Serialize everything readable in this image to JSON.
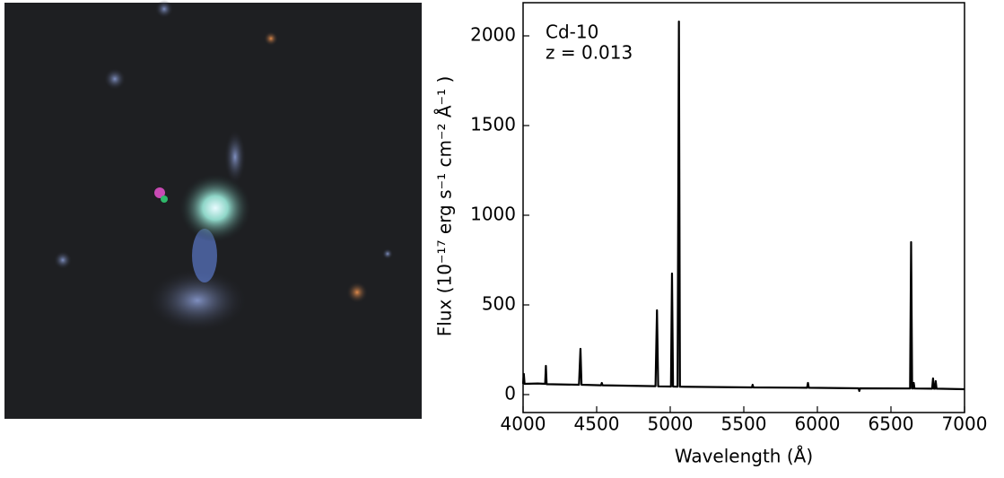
{
  "chart_data": {
    "type": "line",
    "annotations": [
      "Cd-10",
      "z = 0.013"
    ],
    "xlabel": "Wavelength (Å)",
    "ylabel": "Flux (10⁻¹⁷ erg s⁻¹ cm⁻² Å⁻¹ )",
    "x": [
      4000,
      4005,
      4010,
      4100,
      4150,
      4155,
      4160,
      4380,
      4390,
      4397,
      4530,
      4535,
      4540,
      4900,
      4910,
      4918,
      5005,
      5012,
      5019,
      5050,
      5059,
      5066,
      5555,
      5560,
      5565,
      5930,
      5936,
      5942,
      6280,
      6285,
      6290,
      6630,
      6637,
      6644,
      6650,
      6655,
      6660,
      6780,
      6786,
      6792,
      6800,
      6804,
      6810,
      7000
    ],
    "series": [
      {
        "color": "#000000",
        "values": [
          60,
          115,
          60,
          62,
          60,
          160,
          58,
          55,
          255,
          55,
          52,
          65,
          52,
          47,
          470,
          46,
          45,
          675,
          45,
          44,
          2080,
          44,
          40,
          55,
          40,
          38,
          65,
          38,
          35,
          20,
          35,
          34,
          850,
          34,
          34,
          65,
          34,
          33,
          90,
          33,
          33,
          75,
          33,
          30
        ]
      }
    ],
    "xlim": [
      4000,
      7000
    ],
    "ylim": [
      -100,
      2185
    ],
    "xticks": [
      4000,
      4500,
      5000,
      5500,
      6000,
      6500,
      7000
    ],
    "yticks": [
      0,
      500,
      1000,
      1500,
      2000
    ]
  }
}
